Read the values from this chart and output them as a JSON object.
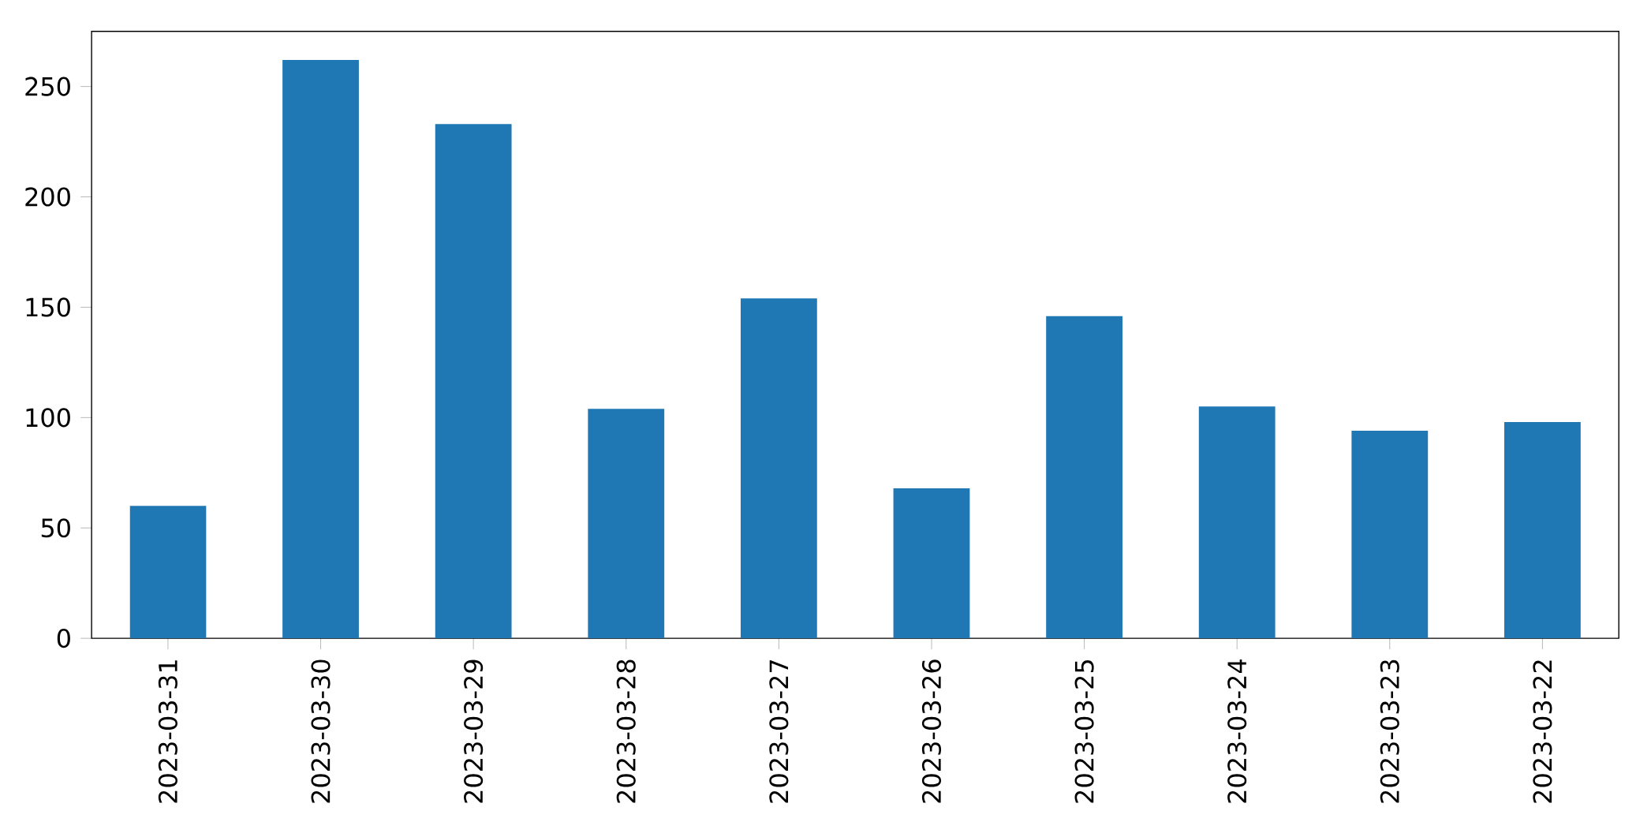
{
  "chart_data": {
    "type": "bar",
    "categories": [
      "2023-03-31",
      "2023-03-30",
      "2023-03-29",
      "2023-03-28",
      "2023-03-27",
      "2023-03-26",
      "2023-03-25",
      "2023-03-24",
      "2023-03-23",
      "2023-03-22"
    ],
    "values": [
      60,
      262,
      233,
      104,
      154,
      68,
      146,
      105,
      94,
      98
    ],
    "color": "#1f77b4",
    "ylim": [
      0,
      275
    ],
    "yticks": [
      0,
      50,
      100,
      150,
      200,
      250
    ]
  }
}
